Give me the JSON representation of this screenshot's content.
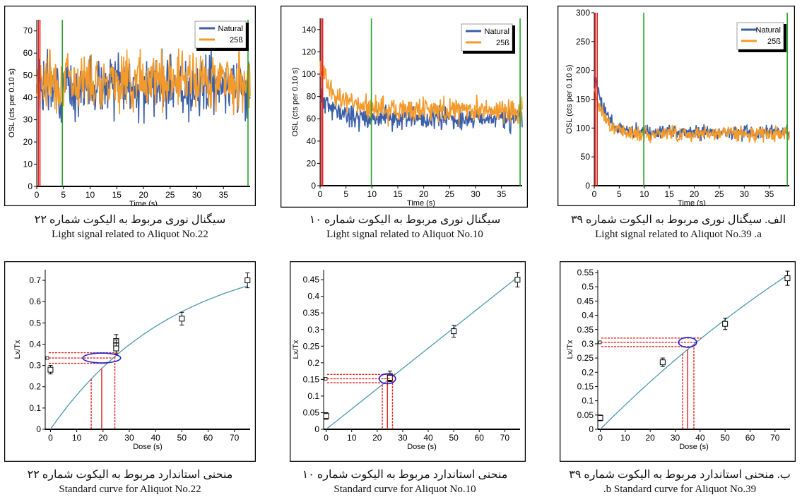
{
  "colors": {
    "natural": "#3a5ea8",
    "beta": "#f39a2b",
    "fit": "#4a9ab0",
    "red": "#e02020",
    "green": "#2aa02a",
    "ellipse": "#2020d0"
  },
  "chart_data": [
    {
      "id": "signal-22",
      "type": "line",
      "ylabel": "OSL (cts per 0.10 s)",
      "xlabel": "Time (s)",
      "xlim": [
        0,
        40
      ],
      "ylim": [
        0,
        75
      ],
      "xticks": [
        0,
        5,
        10,
        15,
        20,
        25,
        30,
        35
      ],
      "yticks": [
        0,
        10,
        20,
        30,
        40,
        50,
        60,
        70
      ],
      "legend": [
        "Natural",
        "25ß"
      ],
      "red_lines": [
        0.3,
        0.6
      ],
      "green_lines": [
        4.8,
        39.6
      ],
      "series": [
        {
          "name": "Natural",
          "start": 52,
          "decay": 0,
          "end": 45,
          "noise": 9,
          "min": 27,
          "max": 72,
          "seed": 3
        },
        {
          "name": "25ß",
          "start": 58,
          "decay": 0,
          "end": 48,
          "noise": 9,
          "min": 32,
          "max": 70,
          "seed": 7
        }
      ],
      "caption_fa": "سیگنال نوری مربوط به الیکوت شماره ۲۲",
      "caption_en": "Light signal related to Aliquot No.22"
    },
    {
      "id": "signal-10",
      "type": "line",
      "ylabel": "OSL (cts per 0.10 s)",
      "xlabel": "Time (s)",
      "xlim": [
        0,
        39
      ],
      "ylim": [
        0,
        150
      ],
      "xticks": [
        0,
        5,
        10,
        15,
        20,
        25,
        30,
        35
      ],
      "yticks": [
        0,
        20,
        40,
        60,
        80,
        100,
        120,
        140
      ],
      "legend": [
        "Natural",
        "25ß"
      ],
      "red_lines": [
        0.2,
        0.5
      ],
      "green_lines": [
        9.9,
        38.6
      ],
      "series": [
        {
          "name": "Natural",
          "start": 80,
          "decay": 3,
          "end": 60,
          "noise": 7,
          "min": 38,
          "max": 95,
          "seed": 11
        },
        {
          "name": "25ß",
          "start": 105,
          "decay": 3,
          "end": 68,
          "noise": 8,
          "min": 40,
          "max": 112,
          "seed": 5
        }
      ],
      "caption_fa": "سیگنال نوری مربوط به الیکوت شماره ۱۰",
      "caption_en": "Light signal related to Aliquot No.10"
    },
    {
      "id": "signal-39",
      "type": "line",
      "ylabel": "OSL (cts per 0.10 s)",
      "xlabel": "Time (s)",
      "xlim": [
        0,
        39
      ],
      "ylim": [
        0,
        300
      ],
      "xticks": [
        0,
        5,
        10,
        15,
        20,
        25,
        30,
        35
      ],
      "yticks": [
        0,
        50,
        100,
        150,
        200,
        250,
        300
      ],
      "legend": [
        "Natural",
        "25ß"
      ],
      "red_lines": [
        0.2,
        0.6
      ],
      "green_lines": [
        9.9,
        38.6
      ],
      "series": [
        {
          "name": "Natural",
          "start": 200,
          "decay": 2,
          "end": 92,
          "noise": 9,
          "min": 70,
          "max": 200,
          "seed": 13
        },
        {
          "name": "25ß",
          "start": 170,
          "decay": 2,
          "end": 90,
          "noise": 9,
          "min": 70,
          "max": 180,
          "seed": 17
        }
      ],
      "caption_fa": "الف. سیگنال نوری مربوط به الیکوت شماره ۳۹",
      "caption_en": "Light signal related to Aliquot No.39 .a"
    },
    {
      "id": "curve-22",
      "type": "scatter",
      "ylabel": "Lx/Tx",
      "xlabel": "Dose (s)",
      "xlim": [
        -2,
        76
      ],
      "ylim": [
        0,
        0.75
      ],
      "xticks": [
        0,
        10,
        20,
        30,
        40,
        50,
        60,
        70
      ],
      "yticks": [
        0,
        0.1,
        0.2,
        0.3,
        0.4,
        0.5,
        0.6,
        0.7
      ],
      "fit": {
        "a": 0.85,
        "k": 0.021,
        "c": 0
      },
      "points": [
        {
          "x": 0,
          "y": 0.28,
          "err": 0.02
        },
        {
          "x": 25,
          "y": 0.415,
          "err": 0.03
        },
        {
          "x": 25,
          "y": 0.395,
          "err": 0.025
        },
        {
          "x": 25,
          "y": 0.38,
          "err": 0.025
        },
        {
          "x": 50,
          "y": 0.52,
          "err": 0.03
        },
        {
          "x": 75,
          "y": 0.7,
          "err": 0.035
        }
      ],
      "natural": {
        "y": 0.335,
        "ylo": 0.31,
        "yhi": 0.36,
        "x": 19.5,
        "xlo": 15.5,
        "xhi": 24.5
      },
      "caption_fa": "منحنی استاندارد مربوط به الیکوت شماره ۲۲",
      "caption_en": "Standard curve for Aliquot No.22"
    },
    {
      "id": "curve-10",
      "type": "scatter",
      "ylabel": "Lx/Tx",
      "xlabel": "Dose (s)",
      "xlim": [
        -1,
        76
      ],
      "ylim": [
        0,
        0.48
      ],
      "xticks": [
        0,
        10,
        20,
        30,
        40,
        50,
        60,
        70
      ],
      "yticks": [
        0,
        0.05,
        0.1,
        0.15,
        0.2,
        0.25,
        0.3,
        0.35,
        0.4,
        0.45
      ],
      "fit": {
        "a": 0,
        "k": 0,
        "c": 0.0061
      },
      "points": [
        {
          "x": 0,
          "y": 0.04,
          "err": 0.01
        },
        {
          "x": 25,
          "y": 0.16,
          "err": 0.015
        },
        {
          "x": 25,
          "y": 0.155,
          "err": 0.012
        },
        {
          "x": 50,
          "y": 0.295,
          "err": 0.018
        },
        {
          "x": 75,
          "y": 0.45,
          "err": 0.022
        }
      ],
      "natural": {
        "y": 0.152,
        "ylo": 0.14,
        "yhi": 0.165,
        "x": 24,
        "xlo": 22,
        "xhi": 26
      },
      "caption_fa": "منحنی استاندارد مربوط به الیکوت شماره ۱۰",
      "caption_en": "Standard curve for Aliquot No.10"
    },
    {
      "id": "curve-39",
      "type": "scatter",
      "ylabel": "Lx/Tx",
      "xlabel": "Dose (s)",
      "xlim": [
        -1,
        76
      ],
      "ylim": [
        0,
        0.56
      ],
      "xticks": [
        0,
        10,
        20,
        30,
        40,
        50,
        60,
        70
      ],
      "yticks": [
        0,
        0.05,
        0.1,
        0.15,
        0.2,
        0.25,
        0.3,
        0.35,
        0.4,
        0.45,
        0.5,
        0.55
      ],
      "fit": {
        "a": 1.6,
        "k": 0.0055,
        "c": 0
      },
      "points": [
        {
          "x": 0,
          "y": 0.04,
          "err": 0.01
        },
        {
          "x": 25,
          "y": 0.235,
          "err": 0.015
        },
        {
          "x": 50,
          "y": 0.37,
          "err": 0.02
        },
        {
          "x": 75,
          "y": 0.53,
          "err": 0.025
        }
      ],
      "natural": {
        "y": 0.305,
        "ylo": 0.29,
        "yhi": 0.32,
        "x": 35,
        "xlo": 33,
        "xhi": 37.5
      },
      "caption_fa": "ب. منحنی استاندارد مربوط به الیکوت شماره ۳۹",
      "caption_en": ".b Standard curve for Aliquot No.39"
    }
  ]
}
